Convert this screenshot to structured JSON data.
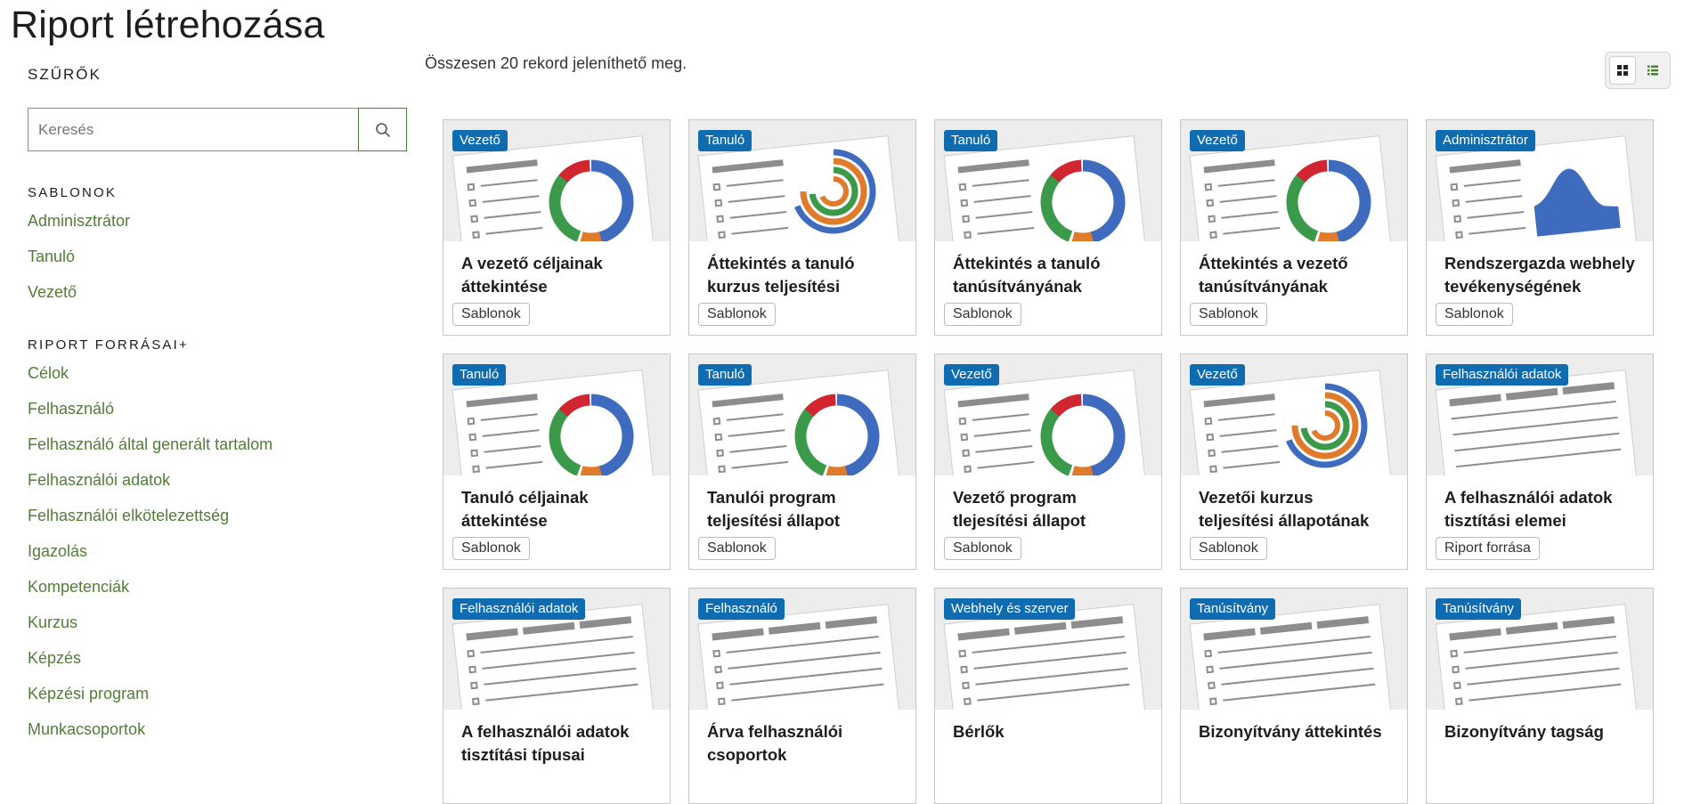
{
  "page_title": "Riport létrehozása",
  "sidebar": {
    "filters_title": "SZŰRŐK",
    "search_placeholder": "Keresés",
    "templates_title": "SABLONOK",
    "templates": [
      "Adminisztrátor",
      "Tanuló",
      "Vezető"
    ],
    "sources_title": "RIPORT FORRÁSAI+",
    "sources": [
      "Célok",
      "Felhasználó",
      "Felhasználó által generált tartalom",
      "Felhasználói adatok",
      "Felhasználói elkötelezettség",
      "Igazolás",
      "Kompetenciák",
      "Kurzus",
      "Képzés",
      "Képzési program",
      "Munkacsoportok"
    ]
  },
  "main": {
    "count_text": "Összesen 20 rekord jeleníthető meg.",
    "cards": [
      {
        "badge": "Vezető",
        "title": "A vezető céljainak áttekintése",
        "chip": "Sablonok",
        "thumb": "donut"
      },
      {
        "badge": "Tanuló",
        "title": "Áttekintés a tanuló kurzus teljesítési",
        "chip": "Sablonok",
        "thumb": "rings"
      },
      {
        "badge": "Tanuló",
        "title": "Áttekintés a tanuló tanúsítványának",
        "chip": "Sablonok",
        "thumb": "donut"
      },
      {
        "badge": "Vezető",
        "title": "Áttekintés a vezető tanúsítványának",
        "chip": "Sablonok",
        "thumb": "donut"
      },
      {
        "badge": "Adminisztrátor",
        "title": "Rendszergazda webhely tevékenységének",
        "chip": "Sablonok",
        "thumb": "area"
      },
      {
        "badge": "Tanuló",
        "title": "Tanuló céljainak áttekintése",
        "chip": "Sablonok",
        "thumb": "donut"
      },
      {
        "badge": "Tanuló",
        "title": "Tanulói program teljesítési állapot",
        "chip": "Sablonok",
        "thumb": "donut"
      },
      {
        "badge": "Vezető",
        "title": "Vezető program tlejesítési állapot",
        "chip": "Sablonok",
        "thumb": "donut"
      },
      {
        "badge": "Vezető",
        "title": "Vezetői kurzus teljesítési állapotának áttekintése",
        "chip": "Sablonok",
        "thumb": "rings"
      },
      {
        "badge": "Felhasználói adatok",
        "title": "A felhasználói adatok tisztítási elemei",
        "chip": "Riport forrása",
        "thumb": "table"
      },
      {
        "badge": "Felhasználói adatok",
        "title": "A felhasználói adatok tisztítási típusai",
        "chip": "",
        "thumb": "list"
      },
      {
        "badge": "Felhasználó",
        "title": "Árva felhasználói csoportok",
        "chip": "",
        "thumb": "list"
      },
      {
        "badge": "Webhely és szerver",
        "title": "Bérlők",
        "chip": "",
        "thumb": "list"
      },
      {
        "badge": "Tanúsítvány",
        "title": "Bizonyítvány áttekintés",
        "chip": "",
        "thumb": "list"
      },
      {
        "badge": "Tanúsítvány",
        "title": "Bizonyítvány tagság",
        "chip": "",
        "thumb": "list"
      }
    ]
  },
  "colors": {
    "link": "#4f7f35",
    "badge": "#0f6cb0",
    "chart_blue": "#3f6bbf",
    "chart_green": "#3a9a4a",
    "chart_red": "#d1262f",
    "chart_orange": "#e07b2c"
  },
  "icons": {
    "search": "search-icon",
    "grid_view": "grid-view-icon",
    "list_view": "list-view-icon"
  }
}
